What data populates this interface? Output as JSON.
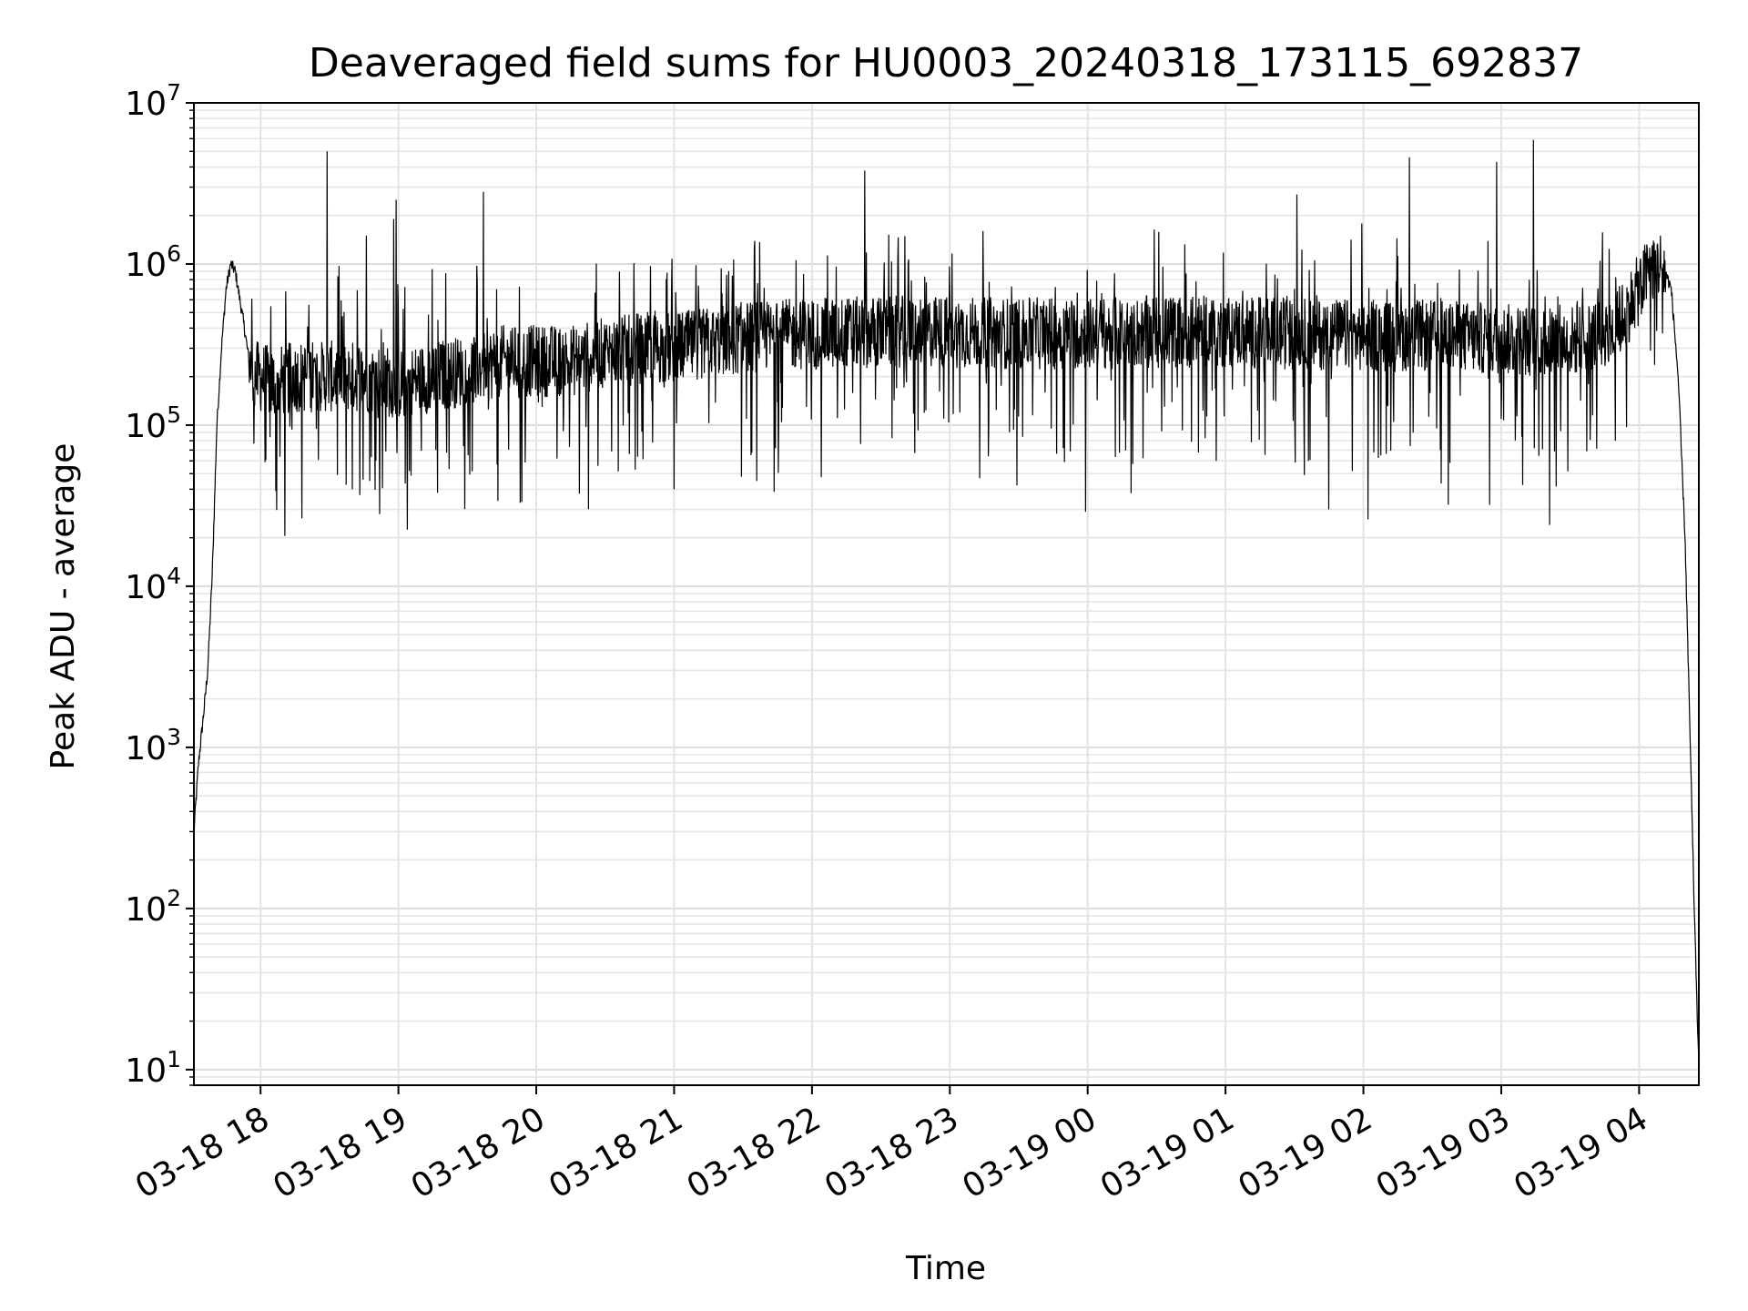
{
  "chart_data": {
    "type": "line",
    "title": "Deaveraged field sums for HU0003_20240318_173115_692837",
    "xlabel": "Time",
    "ylabel": "Peak ADU - average",
    "yscale": "log",
    "ylim": [
      8,
      10000000
    ],
    "xlim": [
      "03-18 17:31",
      "03-19 04:26"
    ],
    "grid": true,
    "x_ticks": [
      "03-18 18",
      "03-18 19",
      "03-18 20",
      "03-18 21",
      "03-18 22",
      "03-18 23",
      "03-19 00",
      "03-19 01",
      "03-19 02",
      "03-19 03",
      "03-19 04"
    ],
    "y_ticks": [
      {
        "base": "10",
        "exp": "1"
      },
      {
        "base": "10",
        "exp": "2"
      },
      {
        "base": "10",
        "exp": "3"
      },
      {
        "base": "10",
        "exp": "4"
      },
      {
        "base": "10",
        "exp": "5"
      },
      {
        "base": "10",
        "exp": "6"
      },
      {
        "base": "10",
        "exp": "7"
      }
    ],
    "line_color": "#000000",
    "series": [
      {
        "x": [
          "03-18 17:31",
          "03-18 17:33",
          "03-18 17:35",
          "03-18 17:37",
          "03-18 17:39",
          "03-18 17:41",
          "03-18 17:43",
          "03-18 17:45",
          "03-18 17:47",
          "03-18 17:49",
          "03-18 17:51",
          "03-18 17:53",
          "03-18 17:55",
          "03-18 17:57",
          "03-18 18:00",
          "03-18 18:05",
          "03-18 18:15",
          "03-18 18:30",
          "03-18 18:45",
          "03-18 19:00",
          "03-18 19:15",
          "03-18 19:30",
          "03-18 19:45",
          "03-18 20:00",
          "03-18 20:15",
          "03-18 20:30",
          "03-18 20:45",
          "03-18 21:00",
          "03-18 21:30",
          "03-18 22:00",
          "03-18 22:30",
          "03-18 23:00",
          "03-18 23:30",
          "03-19 00:00",
          "03-19 00:30",
          "03-19 01:00",
          "03-19 01:30",
          "03-19 02:00",
          "03-19 02:30",
          "03-19 03:00",
          "03-19 03:30",
          "03-19 03:50",
          "03-19 04:00",
          "03-19 04:05",
          "03-19 04:10",
          "03-19 04:14",
          "03-19 04:17",
          "03-19 04:20",
          "03-19 04:22",
          "03-19 04:24",
          "03-19 04:26"
        ],
        "y": [
          300,
          800,
          1500,
          3000,
          12000,
          100000,
          300000,
          700000,
          1000000,
          900000,
          600000,
          400000,
          250000,
          200000,
          200000,
          180000,
          200000,
          200000,
          200000,
          180000,
          200000,
          220000,
          250000,
          250000,
          250000,
          280000,
          300000,
          300000,
          350000,
          370000,
          380000,
          380000,
          370000,
          370000,
          380000,
          380000,
          370000,
          360000,
          360000,
          340000,
          330000,
          400000,
          700000,
          950000,
          1000000,
          700000,
          200000,
          20000,
          1500,
          100,
          10
        ]
      }
    ],
    "spikes": [
      {
        "x": "03-18 18:29",
        "y": 5000000
      },
      {
        "x": "03-18 18:46",
        "y": 1500000
      },
      {
        "x": "03-18 18:58",
        "y": 1900000
      },
      {
        "x": "03-18 18:59",
        "y": 2500000
      },
      {
        "x": "03-18 19:37",
        "y": 2800000
      },
      {
        "x": "03-18 21:00",
        "y": 1500000
      },
      {
        "x": "03-18 22:23",
        "y": 3800000
      },
      {
        "x": "03-19 01:31",
        "y": 2700000
      },
      {
        "x": "03-19 02:20",
        "y": 4600000
      },
      {
        "x": "03-19 02:58",
        "y": 4300000
      },
      {
        "x": "03-19 03:14",
        "y": 5900000
      }
    ],
    "dips": [
      {
        "x": "03-18 18:40",
        "y": 40000
      },
      {
        "x": "03-18 19:17",
        "y": 38000
      },
      {
        "x": "03-18 19:53",
        "y": 33000
      },
      {
        "x": "03-18 21:00",
        "y": 40000
      },
      {
        "x": "03-18 23:59",
        "y": 29000
      },
      {
        "x": "03-19 01:45",
        "y": 30000
      },
      {
        "x": "03-19 02:02",
        "y": 26000
      },
      {
        "x": "03-19 02:37",
        "y": 32000
      },
      {
        "x": "03-19 02:55",
        "y": 32000
      },
      {
        "x": "03-19 03:21",
        "y": 24000
      }
    ]
  }
}
